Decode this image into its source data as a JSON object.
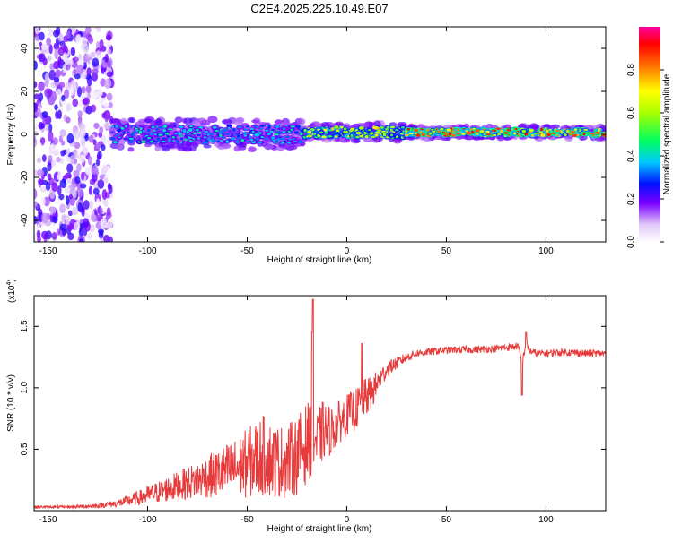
{
  "title": "C2E4.2025.225.10.49.E07",
  "colors": {
    "snr_line": "#e83a3a",
    "frame": "#000000"
  },
  "colorbar": {
    "label": "Normalized spectral amplitude",
    "ticks": [
      "0.0",
      "0.2",
      "0.4",
      "0.6",
      "0.8"
    ],
    "range": [
      0,
      1
    ]
  },
  "chart_data": [
    {
      "type": "heatmap",
      "title": "",
      "xlabel": "Height of straight line (km)",
      "ylabel": "Frequency (Hz)",
      "xlim": [
        -157,
        130
      ],
      "ylim": [
        -50,
        50
      ],
      "xticks": [
        "-150",
        "-100",
        "-50",
        "0",
        "50",
        "100"
      ],
      "yticks": [
        "40",
        "20",
        "0",
        "-20",
        "-40"
      ],
      "features": [
        {
          "name": "noise",
          "x_range": [
            -157,
            -118
          ],
          "f_range": [
            -50,
            50
          ],
          "amplitude": 0.2
        },
        {
          "name": "band",
          "x_range": [
            -118,
            -22
          ],
          "f_center": 0,
          "f_halfwidth": 5,
          "amplitude": 0.45
        },
        {
          "name": "band",
          "x_range": [
            -22,
            30
          ],
          "f_center": 1,
          "f_halfwidth": 3,
          "amplitude": 0.75
        },
        {
          "name": "band",
          "x_range": [
            30,
            130
          ],
          "f_center": 1,
          "f_halfwidth": 2,
          "amplitude": 0.95
        }
      ]
    },
    {
      "type": "line",
      "title": "",
      "xlabel": "Height of straight line (km)",
      "ylabel": "SNR (10 * v/v)",
      "y_multiplier": "(x10",
      "y_multiplier_exp": "4",
      "xlim": [
        -157,
        130
      ],
      "ylim": [
        0,
        17500
      ],
      "xticks": [
        "-150",
        "-100",
        "-50",
        "0",
        "50",
        "100"
      ],
      "yticks": [
        "0.5",
        "1.0",
        "1.5"
      ],
      "series": [
        {
          "x": [
            -157,
            -140,
            -125,
            -115,
            -105,
            -95,
            -85,
            -75,
            -65,
            -55,
            -48,
            -42,
            -36,
            -30,
            -25,
            -20,
            -17,
            -15,
            -12,
            -8,
            -5,
            0,
            5,
            8,
            12,
            16,
            20,
            25,
            30,
            35,
            45,
            55,
            65,
            75,
            82,
            86,
            88,
            90,
            92,
            95,
            100,
            110,
            120,
            130
          ],
          "y": [
            300,
            300,
            400,
            600,
            1000,
            1500,
            2000,
            2500,
            3000,
            3500,
            4000,
            4500,
            4000,
            4000,
            4500,
            5500,
            6000,
            5500,
            6500,
            6500,
            7000,
            7800,
            8300,
            9000,
            9500,
            10500,
            11500,
            12000,
            12500,
            12800,
            13000,
            13100,
            13100,
            13200,
            13300,
            13400,
            12000,
            13600,
            13000,
            12800,
            12800,
            12900,
            12800,
            12800
          ],
          "noise_amp": [
            100,
            100,
            200,
            300,
            600,
            900,
            1200,
            1500,
            2000,
            2500,
            3000,
            3300,
            3000,
            3000,
            3200,
            3300,
            3000,
            2500,
            2500,
            2000,
            1800,
            1700,
            1700,
            1600,
            1500,
            1000,
            700,
            500,
            400,
            300,
            300,
            300,
            300,
            300,
            300,
            300,
            300,
            300,
            300,
            300,
            300,
            300,
            300,
            300
          ],
          "spikes": [
            {
              "x": -17,
              "y": 17200
            },
            {
              "x": -17.5,
              "y": 14500
            },
            {
              "x": 7.5,
              "y": 13600
            },
            {
              "x": 88,
              "y": 9400
            },
            {
              "x": 90,
              "y": 14500
            }
          ]
        }
      ]
    }
  ]
}
